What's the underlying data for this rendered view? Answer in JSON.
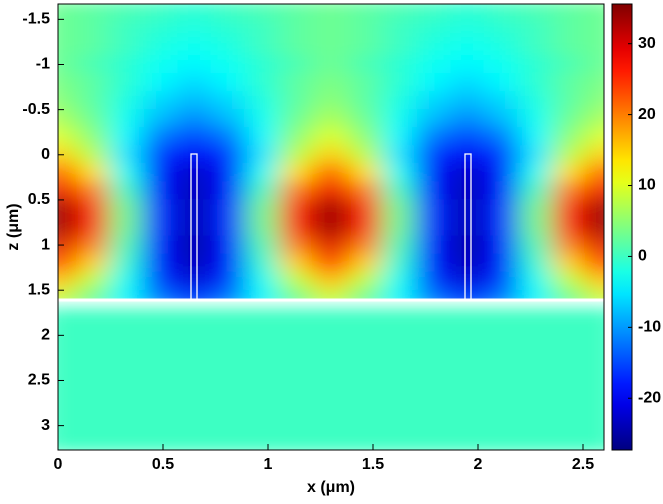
{
  "chart_data": {
    "type": "heatmap",
    "xlabel": "x (μm)",
    "ylabel": "z (μm)",
    "x": [
      0,
      0.1625,
      0.325,
      0.4875,
      0.65,
      0.8125,
      0.975,
      1.1375,
      1.3,
      1.4625,
      1.625,
      1.7875,
      1.95,
      2.1125,
      2.275,
      2.4375,
      2.6
    ],
    "z": [
      -1.6,
      -1.4,
      -1.2,
      -1.0,
      -0.8,
      -0.6,
      -0.4,
      -0.2,
      0,
      0.2,
      0.4,
      0.6,
      0.8,
      1.0,
      1.2,
      1.4,
      1.6,
      1.8,
      2.0,
      2.2,
      2.4,
      2.6,
      2.8,
      3.0,
      3.2
    ],
    "values": [
      [
        3,
        2,
        1,
        0,
        -1,
        0,
        1,
        2,
        3,
        2,
        1,
        0,
        -1,
        0,
        1,
        2,
        3
      ],
      [
        3,
        2,
        0,
        -1,
        -2,
        -1,
        0,
        2,
        3,
        2,
        0,
        -1,
        -2,
        -1,
        0,
        2,
        3
      ],
      [
        3,
        2,
        0,
        -2,
        -3,
        -2,
        0,
        2,
        3,
        2,
        0,
        -2,
        -3,
        -2,
        0,
        2,
        3
      ],
      [
        3,
        1,
        -1,
        -3,
        -4,
        -3,
        -1,
        1,
        3,
        1,
        -1,
        -3,
        -4,
        -3,
        -1,
        1,
        3
      ],
      [
        4,
        2,
        -1,
        -4,
        -6,
        -4,
        -1,
        2,
        4,
        2,
        -1,
        -4,
        -6,
        -4,
        -1,
        2,
        4
      ],
      [
        5,
        2,
        -2,
        -6,
        -8,
        -6,
        -2,
        2,
        5,
        2,
        -2,
        -6,
        -8,
        -6,
        -2,
        2,
        5
      ],
      [
        7,
        3,
        -3,
        -8,
        -11,
        -8,
        -3,
        3,
        7,
        3,
        -3,
        -8,
        -11,
        -8,
        -3,
        3,
        7
      ],
      [
        10,
        5,
        -4,
        -12,
        -15,
        -12,
        -4,
        5,
        10,
        5,
        -4,
        -12,
        -15,
        -12,
        -4,
        5,
        10
      ],
      [
        15,
        8,
        -5,
        -16,
        -20,
        -16,
        -5,
        8,
        15,
        8,
        -5,
        -16,
        -20,
        -16,
        -5,
        8,
        15
      ],
      [
        22,
        14,
        -3,
        -18,
        -23,
        -18,
        -3,
        14,
        22,
        14,
        -3,
        -18,
        -23,
        -18,
        -3,
        14,
        22
      ],
      [
        29,
        20,
        0,
        -18,
        -24,
        -18,
        0,
        20,
        29,
        20,
        0,
        -18,
        -24,
        -18,
        0,
        20,
        29
      ],
      [
        34,
        25,
        3,
        -17,
        -24,
        -17,
        3,
        25,
        34,
        25,
        3,
        -17,
        -24,
        -17,
        3,
        25,
        34
      ],
      [
        34,
        25,
        3,
        -17,
        -24,
        -17,
        3,
        25,
        34,
        25,
        3,
        -17,
        -24,
        -17,
        3,
        25,
        34
      ],
      [
        30,
        20,
        1,
        -18,
        -25,
        -18,
        1,
        20,
        30,
        20,
        1,
        -18,
        -25,
        -18,
        1,
        20,
        30
      ],
      [
        24,
        15,
        -1,
        -18,
        -24,
        -18,
        -1,
        15,
        24,
        15,
        -1,
        -18,
        -24,
        -18,
        -1,
        15,
        24
      ],
      [
        16,
        8,
        -3,
        -16,
        -22,
        -16,
        -3,
        8,
        16,
        8,
        -3,
        -16,
        -22,
        -16,
        -3,
        8,
        16
      ],
      [
        9,
        3,
        -4,
        -12,
        -16,
        -12,
        -4,
        3,
        9,
        3,
        -4,
        -12,
        -16,
        -12,
        -4,
        3,
        9
      ],
      [
        0,
        0,
        0,
        0,
        0,
        0,
        0,
        0,
        0,
        0,
        0,
        0,
        0,
        0,
        0,
        0,
        0
      ],
      [
        0,
        0,
        0,
        0,
        0,
        0,
        0,
        0,
        0,
        0,
        0,
        0,
        0,
        0,
        0,
        0,
        0
      ],
      [
        0,
        0,
        0,
        0,
        0,
        0,
        0,
        0,
        0,
        0,
        0,
        0,
        0,
        0,
        0,
        0,
        0
      ],
      [
        0,
        0,
        0,
        0,
        0,
        0,
        0,
        0,
        0,
        0,
        0,
        0,
        0,
        0,
        0,
        0,
        0
      ],
      [
        0,
        0,
        0,
        0,
        0,
        0,
        0,
        0,
        0,
        0,
        0,
        0,
        0,
        0,
        0,
        0,
        0
      ],
      [
        0,
        0,
        0,
        0,
        0,
        0,
        0,
        0,
        0,
        0,
        0,
        0,
        0,
        0,
        0,
        0,
        0
      ],
      [
        0,
        0,
        0,
        0,
        0,
        0,
        0,
        0,
        0,
        0,
        0,
        0,
        0,
        0,
        0,
        0,
        0
      ],
      [
        0,
        0,
        0,
        0,
        0,
        0,
        0,
        0,
        0,
        0,
        0,
        0,
        0,
        0,
        0,
        0,
        0
      ]
    ],
    "xlim": [
      0,
      2.6
    ],
    "xticks": [
      0,
      0.5,
      1,
      1.5,
      2,
      2.5
    ],
    "ylim": [
      -1.67,
      3.27
    ],
    "yticks": [
      -1.5,
      -1,
      -0.5,
      0,
      0.5,
      1,
      1.5,
      2,
      2.5,
      3
    ],
    "clim": [
      -27.3,
      35.6
    ],
    "cticks": [
      -20,
      -10,
      0,
      10,
      20,
      30
    ],
    "colormap": "jet"
  }
}
